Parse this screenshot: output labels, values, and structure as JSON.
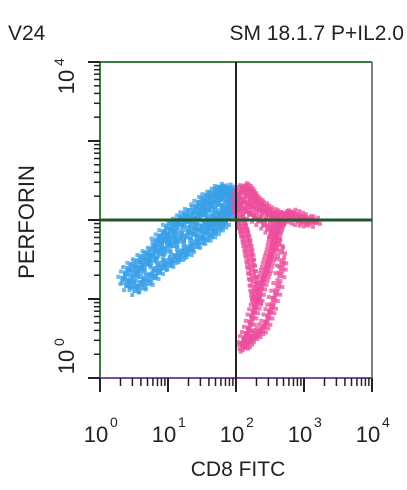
{
  "chart_data": {
    "type": "scatter",
    "title": "SM 18.1.7 P+IL2.0",
    "corner_label": "V24",
    "xlabel": "CD8 FITC",
    "ylabel": "PERFORIN",
    "x_scale": "log",
    "y_scale": "log",
    "xlim": [
      1,
      10000
    ],
    "ylim": [
      1,
      10000
    ],
    "x_ticks": [
      {
        "base": "10",
        "exp": "0",
        "value": 1
      },
      {
        "base": "10",
        "exp": "1",
        "value": 10
      },
      {
        "base": "10",
        "exp": "2",
        "value": 100
      },
      {
        "base": "10",
        "exp": "3",
        "value": 1000
      },
      {
        "base": "10",
        "exp": "4",
        "value": 10000
      }
    ],
    "y_ticks": [
      {
        "base": "10",
        "exp": "0",
        "value": 1
      },
      {
        "base": "10",
        "exp": "4",
        "value": 10000
      }
    ],
    "quadrant_x": 100,
    "quadrant_y": 100,
    "series": [
      {
        "color": "#3aa0e8",
        "points": [
          [
            30,
            130
          ],
          [
            40,
            150
          ],
          [
            55,
            160
          ],
          [
            70,
            180
          ],
          [
            85,
            200
          ],
          [
            60,
            120
          ],
          [
            45,
            110
          ],
          [
            35,
            95
          ],
          [
            25,
            80
          ],
          [
            20,
            70
          ],
          [
            15,
            60
          ],
          [
            12,
            55
          ],
          [
            10,
            50
          ],
          [
            8,
            40
          ],
          [
            6,
            35
          ],
          [
            5,
            30
          ],
          [
            4,
            25
          ],
          [
            3.5,
            22
          ],
          [
            7,
            45
          ],
          [
            9,
            60
          ],
          [
            11,
            75
          ],
          [
            14,
            90
          ],
          [
            18,
            100
          ],
          [
            22,
            110
          ],
          [
            28,
            120
          ],
          [
            33,
            140
          ],
          [
            38,
            170
          ],
          [
            50,
            190
          ],
          [
            65,
            210
          ],
          [
            80,
            220
          ],
          [
            90,
            190
          ],
          [
            95,
            170
          ],
          [
            88,
            150
          ],
          [
            75,
            140
          ],
          [
            62,
            100
          ],
          [
            50,
            90
          ],
          [
            42,
            80
          ],
          [
            36,
            70
          ],
          [
            30,
            60
          ],
          [
            25,
            52
          ],
          [
            20,
            45
          ],
          [
            16,
            40
          ],
          [
            13,
            35
          ],
          [
            10,
            30
          ],
          [
            8,
            28
          ],
          [
            6.5,
            24
          ],
          [
            5.5,
            20
          ],
          [
            4.5,
            18
          ],
          [
            4,
            16
          ],
          [
            3,
            15
          ],
          [
            2.8,
            17
          ],
          [
            3.2,
            20
          ],
          [
            3.8,
            24
          ],
          [
            4.8,
            28
          ],
          [
            5.8,
            32
          ],
          [
            7.5,
            38
          ],
          [
            9.5,
            42
          ],
          [
            12,
            48
          ],
          [
            15,
            55
          ],
          [
            19,
            62
          ],
          [
            24,
            68
          ],
          [
            29,
            75
          ],
          [
            34,
            82
          ],
          [
            40,
            90
          ],
          [
            46,
            98
          ],
          [
            52,
            105
          ],
          [
            58,
            115
          ],
          [
            66,
            125
          ],
          [
            72,
            135
          ],
          [
            78,
            145
          ],
          [
            84,
            160
          ],
          [
            92,
            175
          ],
          [
            98,
            185
          ],
          [
            70,
            230
          ],
          [
            60,
            240
          ],
          [
            55,
            200
          ],
          [
            48,
            170
          ],
          [
            44,
            155
          ],
          [
            39,
            135
          ],
          [
            32,
            118
          ],
          [
            27,
            105
          ],
          [
            23,
            95
          ],
          [
            17,
            85
          ],
          [
            13,
            72
          ],
          [
            11,
            65
          ],
          [
            9,
            55
          ],
          [
            7,
            50
          ],
          [
            6,
            42
          ],
          [
            5,
            38
          ],
          [
            4.2,
            34
          ],
          [
            3.6,
            30
          ],
          [
            3,
            27
          ],
          [
            2.6,
            24
          ],
          [
            2.4,
            21
          ],
          [
            2.2,
            18
          ],
          [
            2.5,
            15
          ],
          [
            3.3,
            13
          ],
          [
            4.1,
            14
          ],
          [
            5.2,
            16
          ],
          [
            6.3,
            19
          ],
          [
            7.4,
            22
          ],
          [
            8.5,
            25
          ],
          [
            10.5,
            27
          ],
          [
            12.5,
            31
          ],
          [
            14.5,
            33
          ],
          [
            16.5,
            36
          ],
          [
            19.5,
            38
          ],
          [
            21,
            42
          ],
          [
            26,
            47
          ],
          [
            31,
            53
          ],
          [
            37,
            58
          ],
          [
            43,
            64
          ],
          [
            49,
            70
          ],
          [
            56,
            78
          ],
          [
            63,
            85
          ],
          [
            69,
            92
          ],
          [
            76,
            110
          ],
          [
            82,
            118
          ],
          [
            87,
            128
          ],
          [
            93,
            138
          ],
          [
            97,
            155
          ],
          [
            85,
            235
          ],
          [
            78,
            250
          ],
          [
            68,
            245
          ],
          [
            58,
            255
          ],
          [
            52,
            235
          ],
          [
            45,
            215
          ],
          [
            38,
            200
          ],
          [
            34,
            185
          ],
          [
            29,
            165
          ],
          [
            26,
            148
          ],
          [
            21,
            130
          ],
          [
            18,
            118
          ],
          [
            16,
            108
          ],
          [
            14,
            98
          ],
          [
            12,
            88
          ],
          [
            10,
            82
          ],
          [
            8.8,
            70
          ],
          [
            7.8,
            62
          ],
          [
            6.8,
            55
          ]
        ]
      },
      {
        "color": "#ec4f9c",
        "points": [
          [
            110,
            200
          ],
          [
            130,
            180
          ],
          [
            150,
            160
          ],
          [
            170,
            150
          ],
          [
            200,
            140
          ],
          [
            250,
            130
          ],
          [
            300,
            120
          ],
          [
            350,
            110
          ],
          [
            400,
            100
          ],
          [
            450,
            95
          ],
          [
            500,
            105
          ],
          [
            600,
            110
          ],
          [
            700,
            120
          ],
          [
            800,
            115
          ],
          [
            900,
            110
          ],
          [
            1000,
            105
          ],
          [
            1200,
            100
          ],
          [
            1500,
            95
          ],
          [
            120,
            150
          ],
          [
            140,
            130
          ],
          [
            160,
            120
          ],
          [
            190,
            110
          ],
          [
            220,
            100
          ],
          [
            260,
            90
          ],
          [
            300,
            80
          ],
          [
            340,
            70
          ],
          [
            380,
            60
          ],
          [
            420,
            50
          ],
          [
            460,
            40
          ],
          [
            480,
            30
          ],
          [
            470,
            25
          ],
          [
            450,
            20
          ],
          [
            420,
            15
          ],
          [
            390,
            12
          ],
          [
            360,
            10
          ],
          [
            340,
            8
          ],
          [
            320,
            7
          ],
          [
            300,
            6
          ],
          [
            280,
            5
          ],
          [
            260,
            4.5
          ],
          [
            240,
            4
          ],
          [
            220,
            3.8
          ],
          [
            200,
            3.5
          ],
          [
            180,
            3.3
          ],
          [
            160,
            3
          ],
          [
            150,
            2.8
          ],
          [
            140,
            2.6
          ],
          [
            130,
            2.5
          ],
          [
            125,
            2.7
          ],
          [
            135,
            3.2
          ],
          [
            145,
            3.6
          ],
          [
            155,
            4.2
          ],
          [
            165,
            5
          ],
          [
            175,
            6
          ],
          [
            185,
            7
          ],
          [
            195,
            8
          ],
          [
            205,
            9
          ],
          [
            215,
            10
          ],
          [
            225,
            12
          ],
          [
            235,
            14
          ],
          [
            245,
            16
          ],
          [
            255,
            18
          ],
          [
            265,
            20
          ],
          [
            275,
            22
          ],
          [
            285,
            24
          ],
          [
            295,
            27
          ],
          [
            305,
            30
          ],
          [
            315,
            33
          ],
          [
            325,
            36
          ],
          [
            335,
            40
          ],
          [
            345,
            45
          ],
          [
            355,
            50
          ],
          [
            365,
            55
          ],
          [
            375,
            60
          ],
          [
            385,
            65
          ],
          [
            395,
            70
          ],
          [
            405,
            75
          ],
          [
            415,
            80
          ],
          [
            425,
            85
          ],
          [
            435,
            90
          ],
          [
            445,
            94
          ],
          [
            455,
            98
          ],
          [
            115,
            230
          ],
          [
            125,
            245
          ],
          [
            135,
            260
          ],
          [
            145,
            250
          ],
          [
            155,
            240
          ],
          [
            165,
            225
          ],
          [
            175,
            210
          ],
          [
            185,
            195
          ],
          [
            195,
            180
          ],
          [
            210,
            170
          ],
          [
            230,
            160
          ],
          [
            240,
            150
          ],
          [
            270,
            145
          ],
          [
            290,
            135
          ],
          [
            320,
            128
          ],
          [
            360,
            122
          ],
          [
            390,
            118
          ],
          [
            430,
            112
          ],
          [
            470,
            108
          ],
          [
            520,
            115
          ],
          [
            560,
            118
          ],
          [
            620,
            114
          ],
          [
            680,
            108
          ],
          [
            740,
            104
          ],
          [
            820,
            100
          ],
          [
            950,
            98
          ],
          [
            1100,
            96
          ],
          [
            1300,
            98
          ],
          [
            105,
            170
          ],
          [
            108,
            140
          ],
          [
            112,
            120
          ],
          [
            118,
            105
          ],
          [
            122,
            92
          ],
          [
            128,
            82
          ],
          [
            132,
            74
          ],
          [
            138,
            66
          ],
          [
            142,
            58
          ],
          [
            148,
            50
          ],
          [
            152,
            44
          ],
          [
            158,
            38
          ],
          [
            162,
            33
          ],
          [
            168,
            28
          ],
          [
            172,
            24
          ],
          [
            178,
            20
          ],
          [
            182,
            17
          ],
          [
            188,
            14
          ],
          [
            192,
            12
          ],
          [
            198,
            10.5
          ],
          [
            202,
            9.5
          ]
        ]
      }
    ]
  }
}
